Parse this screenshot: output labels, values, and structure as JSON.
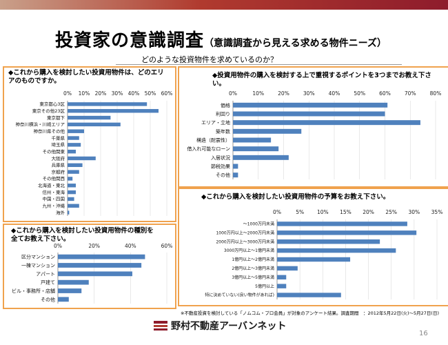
{
  "header": {
    "title": "投資家の意識調査",
    "subtitle": "（意識調査から見える求める物件ニーズ）",
    "question": "どのような投資物件を求めているのか？"
  },
  "chart_data": [
    {
      "type": "bar",
      "orientation": "horizontal",
      "title": "◆これから購入を検討したい投資用物件は、どのエリアのものですか。",
      "ticks": [
        "0%",
        "10%",
        "20%",
        "30%",
        "40%",
        "50%",
        "60%"
      ],
      "xlim": [
        0,
        60
      ],
      "categories": [
        "東京都心3区",
        "東京その他23区",
        "東京都下",
        "神奈川横浜・川崎エリア",
        "神奈川県その他",
        "千葉県",
        "埼玉県",
        "その他関東",
        "大阪府",
        "兵庫県",
        "京都府",
        "その他関西",
        "北海道・東北",
        "信州・東海",
        "中国・四国",
        "九州・沖縄",
        "海外"
      ],
      "values": [
        48,
        55,
        26,
        32,
        10,
        7,
        8,
        5,
        17,
        9,
        7,
        3,
        5,
        5,
        4,
        7,
        1
      ],
      "color": "#4f81bd"
    },
    {
      "type": "bar",
      "orientation": "horizontal",
      "title": "◆投資用物件の購入を検討する上で重視するポイントを3つまでお教え下さい。",
      "ticks": [
        "0%",
        "10%",
        "20%",
        "30%",
        "40%",
        "50%",
        "60%",
        "70%",
        "80%"
      ],
      "xlim": [
        0,
        80
      ],
      "categories": [
        "価格",
        "利回り",
        "エリア・立地",
        "築年数",
        "構造（耐震性）",
        "借入れ可能なローン",
        "入居状況",
        "節税効果",
        "その他"
      ],
      "values": [
        61,
        60,
        74,
        27,
        15,
        18,
        22,
        2,
        2
      ],
      "color": "#4f81bd"
    },
    {
      "type": "bar",
      "orientation": "horizontal",
      "title": "◆これから購入を検討したい投資用物件の種別を全てお教え下さい。",
      "ticks": [
        "0%",
        "20%",
        "40%",
        "60%"
      ],
      "xlim": [
        0,
        60
      ],
      "categories": [
        "区分マンション",
        "一棟マンション",
        "アパート",
        "戸建て",
        "ビル・事務所・店舗",
        "その他"
      ],
      "values": [
        48,
        46,
        41,
        17,
        13,
        6
      ],
      "color": "#4f81bd"
    },
    {
      "type": "bar",
      "orientation": "horizontal",
      "title": "◆これから購入を検討したい投資用物件の予算をお教え下さい。",
      "ticks": [
        "0%",
        "5%",
        "10%",
        "15%",
        "20%",
        "25%",
        "30%",
        "35%"
      ],
      "xlim": [
        0,
        35
      ],
      "categories": [
        "～1000万円未満",
        "1000万円以上～2000万円未満",
        "2000万円以上～3000万円未満",
        "3000万円以上～1億円未満",
        "1億円以上～2億円未満",
        "2億円以上～3億円未満",
        "3億円以上～5億円未満",
        "5億円以上",
        "特に決めていない(良い物件があれば)"
      ],
      "values": [
        28.5,
        30.5,
        22.5,
        26,
        16,
        4.5,
        2,
        2,
        14
      ],
      "color": "#4f81bd"
    }
  ],
  "footnote": "※不動産投資を検討している「ノムコム・プロ会員」が対象のアンケート結果。調査期間　：2012年5月22日(火)～5月27日(日)",
  "footer": {
    "brand": "野村不動産アーバンネット",
    "page_number": "16"
  },
  "colors": {
    "accent": "#f0a24d",
    "bar": "#4f81bd",
    "brand": "#8e1c2c"
  }
}
